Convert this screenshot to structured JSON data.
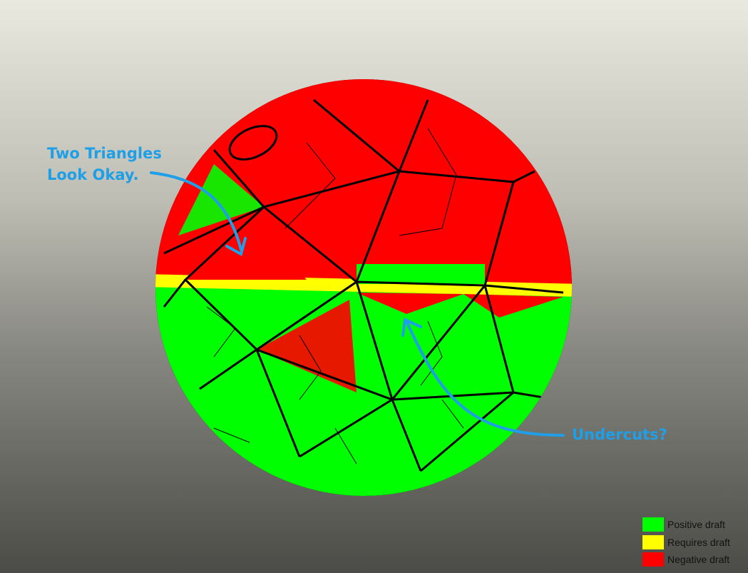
{
  "annotations": {
    "note1_line1": "Two Triangles",
    "note1_line2": "Look Okay.",
    "note2": "Undercuts?"
  },
  "legend": [
    {
      "label": "Positive draft",
      "color": "#00ff00"
    },
    {
      "label": "Requires draft",
      "color": "#ffff00"
    },
    {
      "label": "Negative draft",
      "color": "#ff0000"
    }
  ],
  "colors": {
    "annotation": "#1e9fe8",
    "outline": "#000000"
  }
}
